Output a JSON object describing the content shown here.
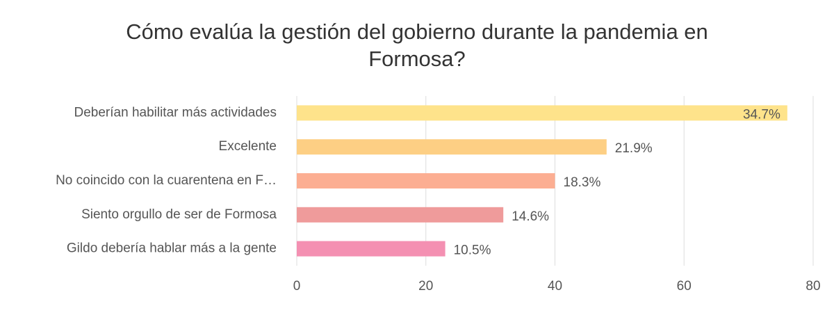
{
  "chart_data": {
    "type": "bar",
    "orientation": "horizontal",
    "title": "Cómo evalúa la gestión del gobierno durante la pandemia en Formosa?",
    "categories": [
      "Deberían habilitar más actividades",
      "Excelente",
      "No coincido con la cuarentena en F…",
      "Siento orgullo de ser de Formosa",
      "Gildo debería hablar más a la gente"
    ],
    "values": [
      76,
      48,
      40,
      32,
      23
    ],
    "value_labels": [
      "34.7%",
      "21.9%",
      "18.3%",
      "14.6%",
      "10.5%"
    ],
    "colors": [
      "#fee38b",
      "#fdcf84",
      "#fcae92",
      "#ef9b9b",
      "#f490b2"
    ],
    "xlim": [
      0,
      80
    ],
    "xticks": [
      0,
      20,
      40,
      60,
      80
    ],
    "grid": true
  }
}
